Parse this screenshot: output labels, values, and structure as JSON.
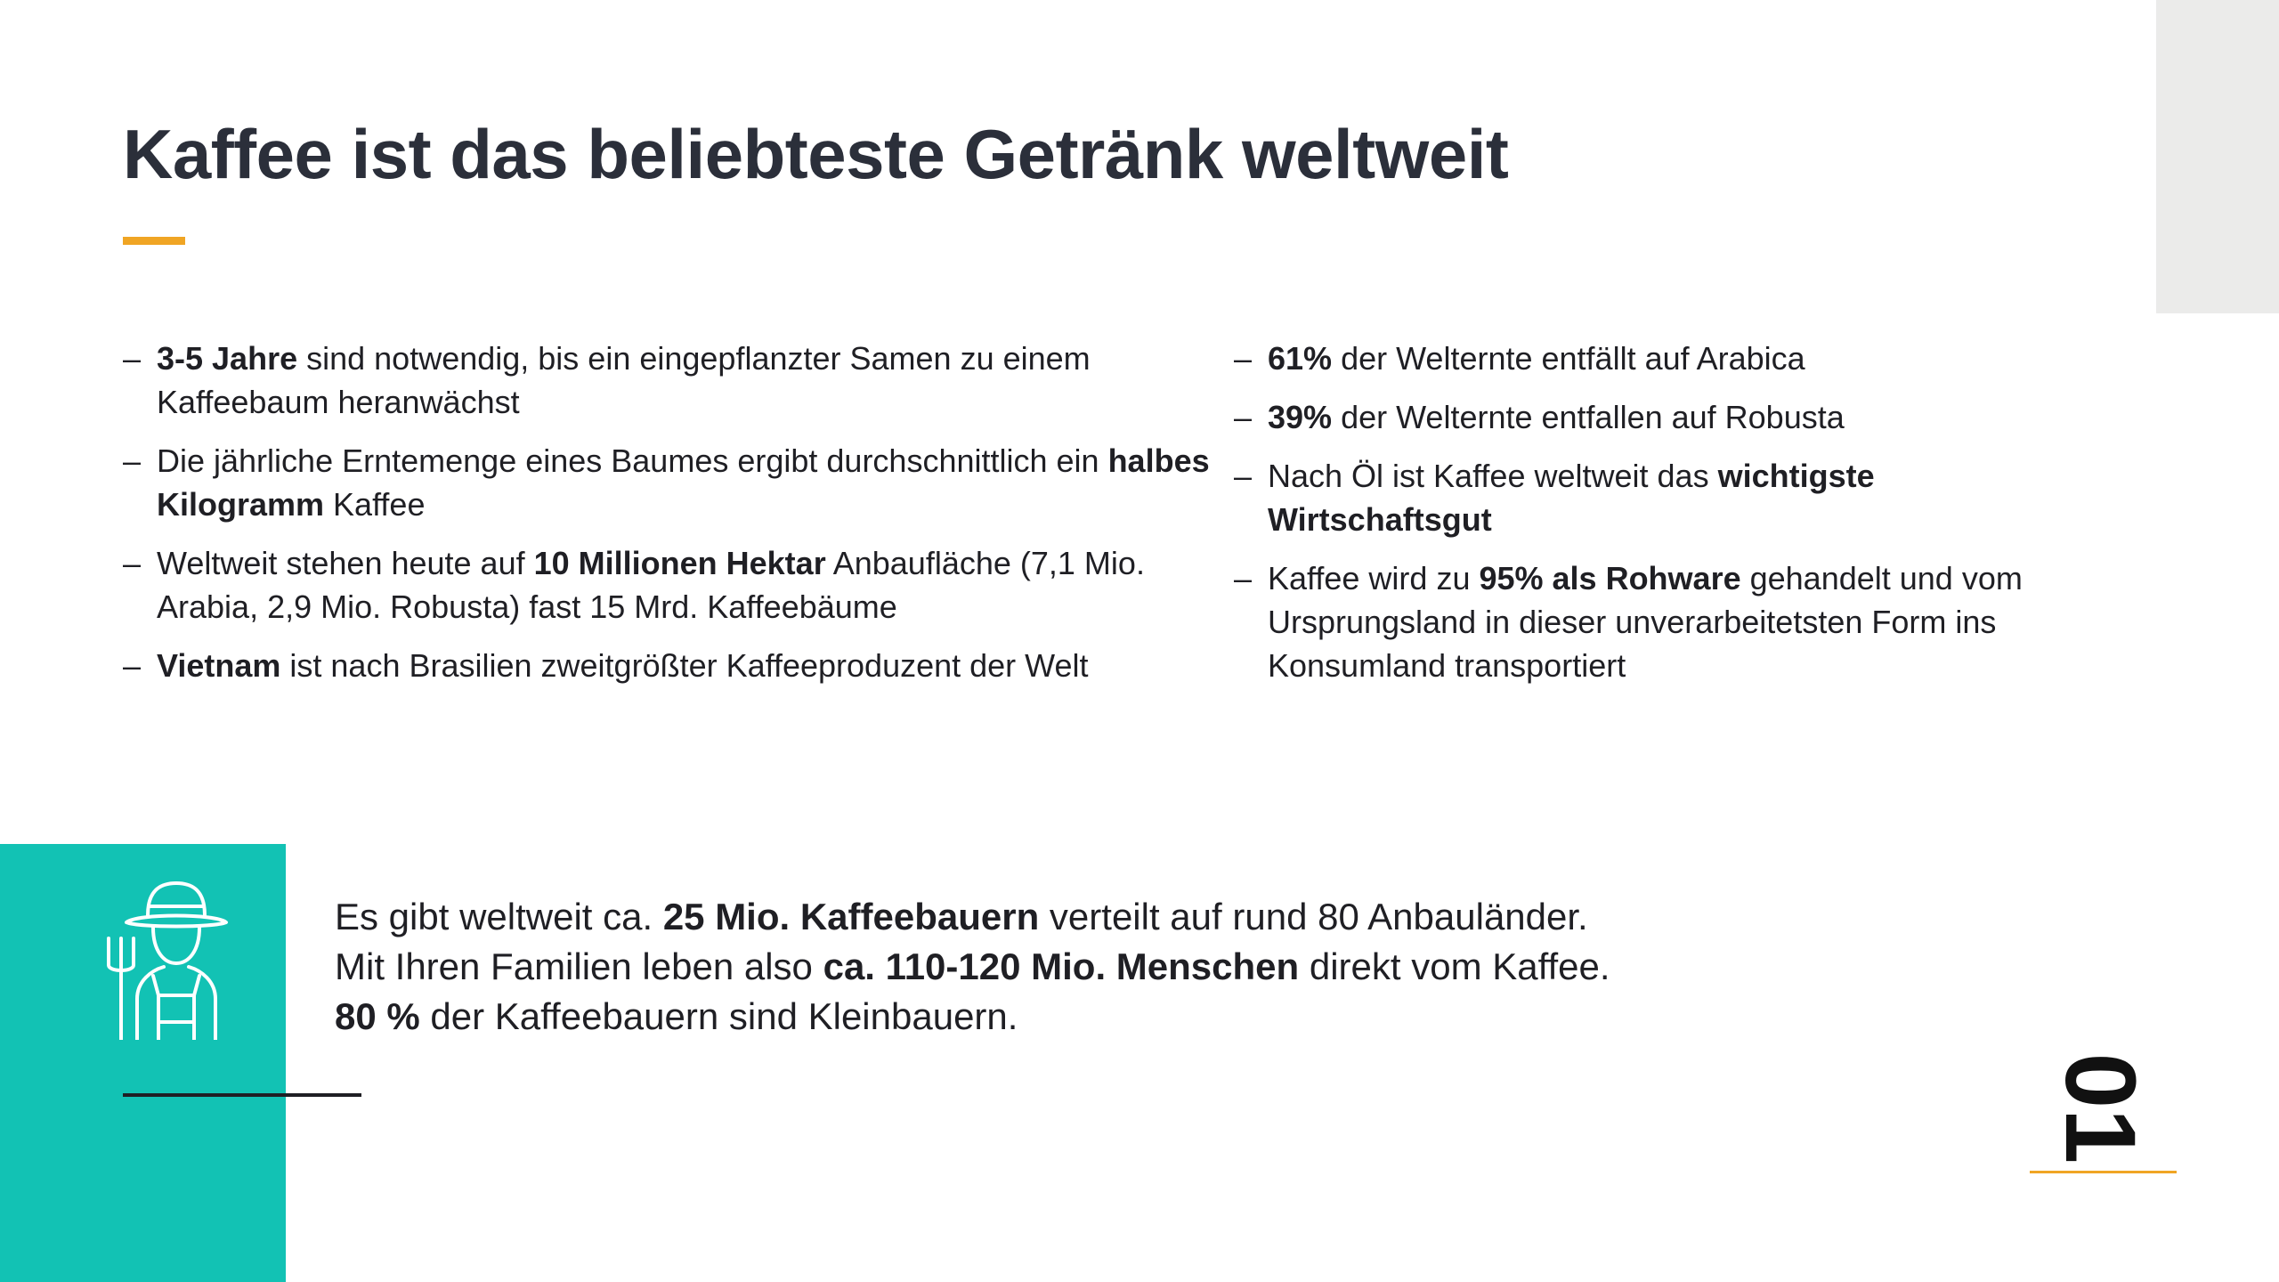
{
  "slide": {
    "title": "Kaffee ist das beliebteste Getränk weltweit",
    "page_number": "01",
    "accent_color": "#f0a524",
    "panel_color": "#12c2b4",
    "icon": "farmer-icon"
  },
  "left_bullets": [
    {
      "dash": "–",
      "bold": "3-5 Jahre",
      "text": " sind notwendig, bis ein eingepflanzter Samen zu einem Kaffeebaum heranwächst"
    },
    {
      "dash": "–",
      "pre": "Die jährliche Erntemenge eines Baumes ergibt durchschnittlich ein ",
      "bold": "halbes Kilogramm",
      "text": " Kaffee"
    },
    {
      "dash": "–",
      "pre": "Weltweit stehen heute auf ",
      "bold": "10 Millionen Hektar",
      "text": " Anbaufläche (7,1 Mio. Arabia, 2,9 Mio. Robusta) fast 15 Mrd. Kaffeebäume"
    },
    {
      "dash": "–",
      "bold": "Vietnam",
      "text": " ist nach Brasilien zweitgrößter Kaffeeproduzent der Welt"
    }
  ],
  "right_bullets": [
    {
      "dash": "–",
      "bold": "61%",
      "text": " der Welternte entfällt auf Arabica"
    },
    {
      "dash": "–",
      "bold": "39%",
      "text": " der Welternte entfallen auf Robusta"
    },
    {
      "dash": "–",
      "pre": "Nach Öl ist Kaffee weltweit das ",
      "bold": "wichtigste Wirtschaftsgut"
    },
    {
      "dash": "–",
      "pre": "Kaffee wird zu ",
      "bold": "95% als Rohware",
      "text": " gehandelt und vom Ursprungsland in dieser unverarbeitetsten Form ins Konsumland transportiert"
    }
  ],
  "fact": {
    "line1_pre": "Es gibt weltweit ca. ",
    "line1_bold": "25 Mio. Kaffeebauern",
    "line1_post": " verteilt auf rund 80 Anbauländer.",
    "line2_pre": "Mit Ihren Familien leben also ",
    "line2_bold": "ca. 110-120 Mio. Menschen",
    "line2_post": " direkt vom Kaffee.",
    "line3_bold": "80 %",
    "line3_post": " der Kaffeebauern sind Kleinbauern."
  }
}
